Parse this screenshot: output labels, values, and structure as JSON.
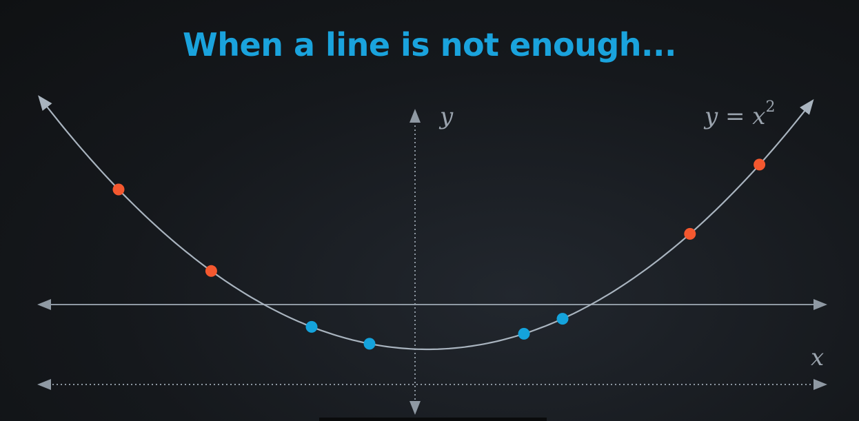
{
  "title": "When a line is not enough...",
  "labels": {
    "y_axis": "y",
    "x_axis": "x",
    "equation_lhs": "y = x",
    "equation_exponent": "2"
  },
  "colors": {
    "title": "#1aa3dd",
    "curve": "#a9b4bf",
    "axis": "#8f99a3",
    "point_outer": "#f4582f",
    "point_inner": "#14a3dc"
  },
  "points": {
    "outer": [
      {
        "x": -4.0,
        "y": 16.0
      },
      {
        "x": -2.8,
        "y": 7.84
      },
      {
        "x": 3.4,
        "y": 11.56
      },
      {
        "x": 4.3,
        "y": 18.49
      }
    ],
    "inner": [
      {
        "x": -1.5,
        "y": 2.25
      },
      {
        "x": -0.75,
        "y": 0.56
      },
      {
        "x": 1.25,
        "y": 1.56
      },
      {
        "x": 1.75,
        "y": 3.06
      }
    ]
  }
}
